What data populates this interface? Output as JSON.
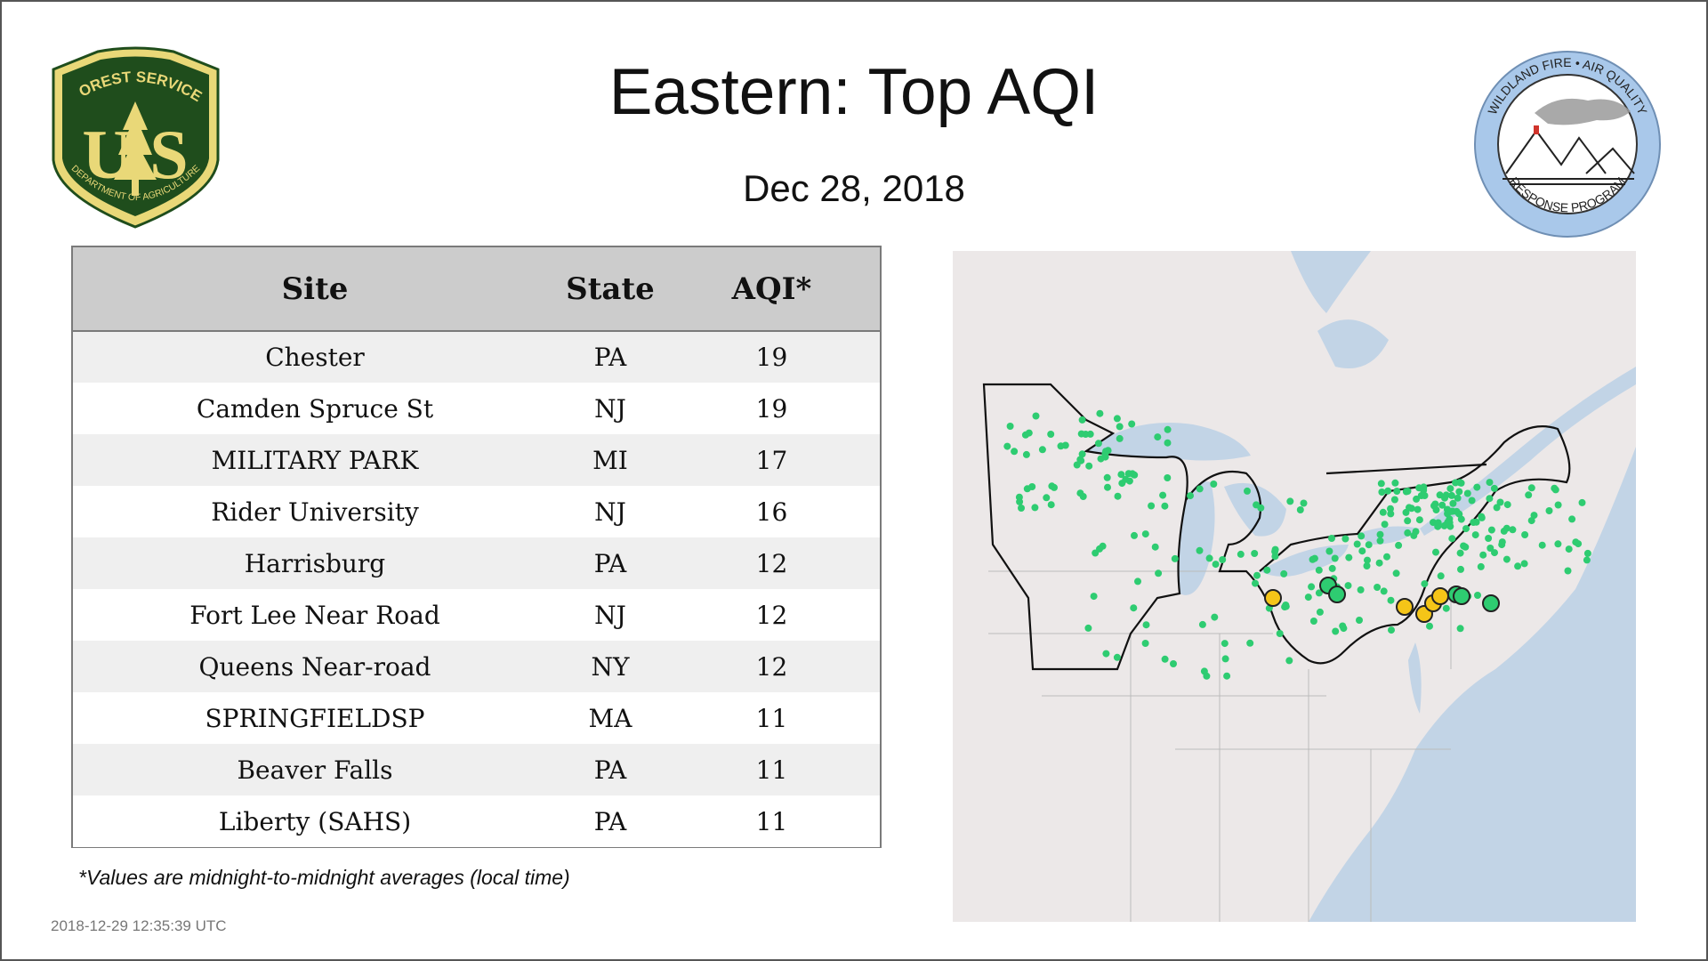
{
  "title": "Eastern: Top AQI",
  "date": "Dec 28, 2018",
  "logos": {
    "forest_service": {
      "top_text": "FOREST SERVICE",
      "letters": "U  S",
      "bottom_text": "DEPARTMENT OF AGRICULTURE"
    },
    "wildland": {
      "top_text": "WILDLAND FIRE • AIR QUALITY",
      "bottom_text": "RESPONSE PROGRAM"
    }
  },
  "table": {
    "headers": {
      "site": "Site",
      "state": "State",
      "aqi": "AQI*"
    },
    "rows": [
      {
        "site": "Chester",
        "state": "PA",
        "aqi": "19"
      },
      {
        "site": "Camden Spruce St",
        "state": "NJ",
        "aqi": "19"
      },
      {
        "site": "MILITARY PARK",
        "state": "MI",
        "aqi": "17"
      },
      {
        "site": "Rider University",
        "state": "NJ",
        "aqi": "16"
      },
      {
        "site": "Harrisburg",
        "state": "PA",
        "aqi": "12"
      },
      {
        "site": "Fort Lee Near Road",
        "state": "NJ",
        "aqi": "12"
      },
      {
        "site": "Queens Near-road",
        "state": "NY",
        "aqi": "12"
      },
      {
        "site": "SPRINGFIELDSP",
        "state": "MA",
        "aqi": "11"
      },
      {
        "site": "Beaver Falls",
        "state": "PA",
        "aqi": "11"
      },
      {
        "site": "Liberty (SAHS)",
        "state": "PA",
        "aqi": "11"
      }
    ]
  },
  "footnote": "*Values are midnight-to-midnight averages (local time)",
  "timestamp": "2018-12-29 12:35:39 UTC",
  "colors": {
    "aqi_good": "#2ecc71",
    "aqi_moderate": "#f5c518",
    "map_land": "#ece8e8",
    "map_water": "#c2d4e6",
    "fs_green": "#1f4d1c",
    "fs_gold": "#e9d878",
    "wf_blue": "#a9c8ea"
  }
}
